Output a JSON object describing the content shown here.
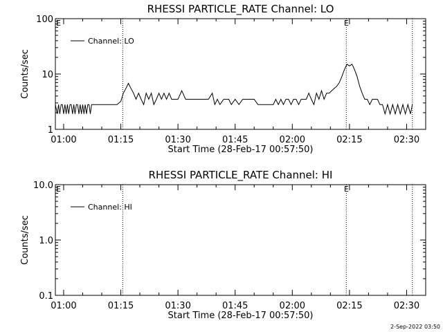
{
  "chart_data": [
    {
      "type": "line",
      "title": "RHESSI PARTICLE_RATE Channel: LO",
      "xlabel": "Start Time (28-Feb-17 00:57:50)",
      "ylabel": "Counts/sec",
      "yscale": "log",
      "ylim": [
        1,
        100
      ],
      "xlim": [
        "00:57:50",
        "02:35:00"
      ],
      "xticks": [
        "01:00",
        "01:15",
        "01:30",
        "01:45",
        "02:00",
        "02:15",
        "02:30"
      ],
      "yticks": [
        "1",
        "10",
        "100"
      ],
      "legend": "top-left",
      "flag_markers": [
        {
          "time": "01:15:30",
          "label": ""
        },
        {
          "time": "02:14:10",
          "label": "E"
        },
        {
          "time": "02:31:30",
          "label": ""
        }
      ],
      "corner_label": "E",
      "series": [
        {
          "name": "Channel: LO",
          "x": [
            "00:57:50",
            "00:58:20",
            "00:58:40",
            "00:59:00",
            "00:59:20",
            "00:59:40",
            "01:00:00",
            "01:00:20",
            "01:00:40",
            "01:01:00",
            "01:01:20",
            "01:01:40",
            "01:02:00",
            "01:02:20",
            "01:02:40",
            "01:03:00",
            "01:03:20",
            "01:03:40",
            "01:04:00",
            "01:04:20",
            "01:04:40",
            "01:05:00",
            "01:05:20",
            "01:05:40",
            "01:06:00",
            "01:06:20",
            "01:06:40",
            "01:07:00",
            "01:07:20",
            "01:07:40",
            "01:08:00",
            "01:10:00",
            "01:12:00",
            "01:14:00",
            "01:15:00",
            "01:15:40",
            "01:16:20",
            "01:17:00",
            "01:17:40",
            "01:18:20",
            "01:19:00",
            "01:19:40",
            "01:20:20",
            "01:21:00",
            "01:21:40",
            "01:22:20",
            "01:23:00",
            "01:23:40",
            "01:24:20",
            "01:25:00",
            "01:25:40",
            "01:26:20",
            "01:27:00",
            "01:27:40",
            "01:28:20",
            "01:29:00",
            "01:30:00",
            "01:31:00",
            "01:32:00",
            "01:32:40",
            "01:33:20",
            "01:34:00",
            "01:35:00",
            "01:36:00",
            "01:37:00",
            "01:38:00",
            "01:39:00",
            "01:39:40",
            "01:40:20",
            "01:41:00",
            "01:42:00",
            "01:42:40",
            "01:43:20",
            "01:44:00",
            "01:45:00",
            "01:46:00",
            "01:47:00",
            "01:47:40",
            "01:48:20",
            "01:49:00",
            "01:50:00",
            "01:51:00",
            "01:52:00",
            "01:52:40",
            "01:53:20",
            "01:54:00",
            "01:55:00",
            "01:55:40",
            "01:56:20",
            "01:57:00",
            "01:57:40",
            "01:58:20",
            "01:59:00",
            "01:59:40",
            "02:00:20",
            "02:01:00",
            "02:01:40",
            "02:02:20",
            "02:03:00",
            "02:03:40",
            "02:04:20",
            "02:05:00",
            "02:05:40",
            "02:06:20",
            "02:07:00",
            "02:07:40",
            "02:08:20",
            "02:09:00",
            "02:09:40",
            "02:10:20",
            "02:11:00",
            "02:11:40",
            "02:12:20",
            "02:13:00",
            "02:13:40",
            "02:14:20",
            "02:15:00",
            "02:15:40",
            "02:16:20",
            "02:17:00",
            "02:17:40",
            "02:18:20",
            "02:19:00",
            "02:19:40",
            "02:20:20",
            "02:21:00",
            "02:21:40",
            "02:22:20",
            "02:23:00",
            "02:23:40",
            "02:24:20",
            "02:25:00",
            "02:25:40",
            "02:26:20",
            "02:27:00",
            "02:27:40",
            "02:28:20",
            "02:29:00",
            "02:29:40",
            "02:30:20",
            "02:31:00",
            "02:31:30"
          ],
          "y": [
            2.8,
            1.9,
            2.8,
            1.9,
            2.8,
            2.8,
            1.9,
            2.8,
            1.9,
            2.8,
            1.9,
            2.8,
            2.8,
            1.9,
            2.8,
            1.9,
            2.8,
            2.8,
            1.9,
            2.8,
            1.9,
            2.8,
            1.9,
            2.8,
            1.9,
            2.8,
            2.8,
            1.9,
            2.8,
            2.8,
            2.8,
            2.8,
            2.8,
            2.8,
            3.2,
            4.5,
            5.5,
            6.8,
            5.5,
            4.5,
            3.5,
            4.5,
            3.5,
            2.8,
            4.5,
            3.5,
            4.5,
            2.8,
            3.5,
            4.5,
            3.5,
            4.5,
            3.5,
            4.5,
            3.5,
            3.5,
            3.5,
            5.0,
            3.5,
            3.5,
            3.5,
            3.5,
            3.5,
            3.5,
            3.5,
            3.5,
            4.5,
            2.8,
            3.5,
            2.8,
            3.5,
            3.5,
            3.5,
            2.8,
            3.5,
            2.8,
            3.5,
            3.5,
            3.5,
            3.5,
            3.5,
            2.8,
            2.8,
            2.8,
            2.8,
            2.8,
            2.8,
            3.5,
            2.8,
            3.5,
            2.8,
            3.5,
            3.5,
            2.8,
            3.5,
            3.5,
            2.8,
            3.5,
            3.5,
            3.5,
            4.5,
            3.5,
            2.8,
            4.5,
            3.5,
            5.0,
            3.5,
            4.5,
            4.5,
            5.0,
            5.5,
            6.0,
            7.0,
            9.0,
            12.0,
            15.0,
            14.0,
            15.0,
            12.0,
            9.0,
            6.0,
            4.5,
            3.5,
            3.5,
            2.8,
            3.5,
            3.5,
            3.5,
            2.8,
            2.8,
            1.9,
            2.8,
            1.9,
            2.8,
            1.9,
            2.8,
            1.9,
            2.8,
            1.9,
            2.8,
            1.9,
            2.8
          ]
        }
      ]
    },
    {
      "type": "line",
      "title": "RHESSI PARTICLE_RATE Channel: HI",
      "xlabel": "Start Time (28-Feb-17 00:57:50)",
      "ylabel": "Counts/sec",
      "yscale": "log",
      "ylim": [
        0.1,
        10
      ],
      "xlim": [
        "00:57:50",
        "02:35:00"
      ],
      "xticks": [
        "01:00",
        "01:15",
        "01:30",
        "01:45",
        "02:00",
        "02:15",
        "02:30"
      ],
      "yticks": [
        "0.1",
        "1.0",
        "10.0"
      ],
      "legend": "top-left",
      "flag_markers": [
        {
          "time": "01:15:30",
          "label": ""
        },
        {
          "time": "02:14:10",
          "label": "E"
        },
        {
          "time": "02:31:30",
          "label": ""
        }
      ],
      "corner_label": "E",
      "series": [
        {
          "name": "Channel: HI",
          "x": [],
          "y": []
        }
      ]
    }
  ],
  "footer": {
    "timestamp": "2-Sep-2022 03:50"
  },
  "colors": {
    "background": "#ffffff",
    "ink": "#000000"
  }
}
